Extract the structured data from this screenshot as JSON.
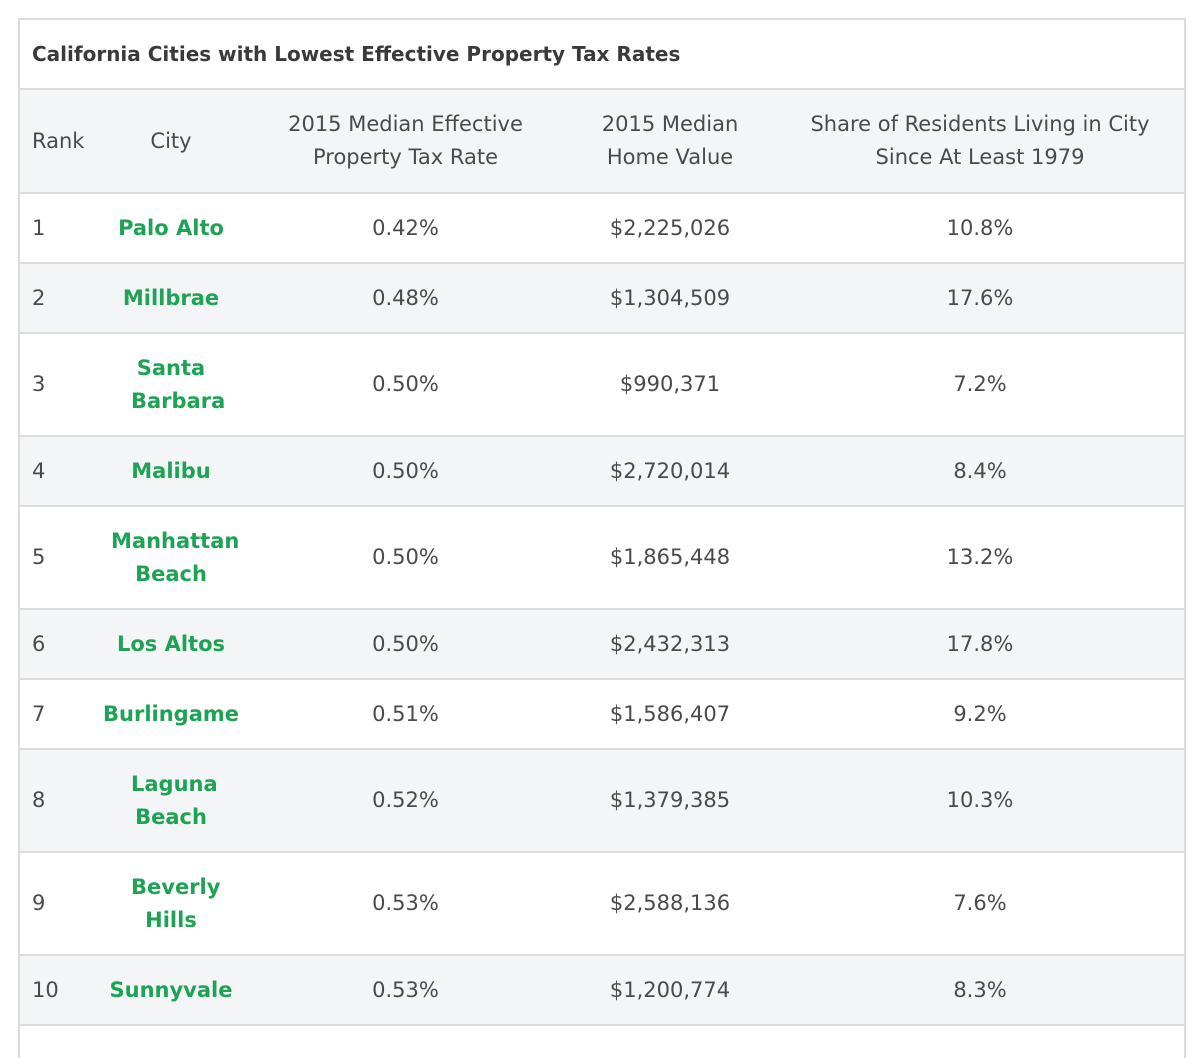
{
  "title": "California Cities with Lowest Effective Property Tax Rates",
  "headers": {
    "rank": "Rank",
    "city": "City",
    "rate": "2015 Median Effective Property Tax Rate",
    "home": "2015 Median Home Value",
    "share": "Share of Residents Living in City Since At Least 1979"
  },
  "rows": [
    {
      "rank": "1",
      "city": "Palo Alto",
      "rate": "0.42%",
      "home": "$2,225,026",
      "share": "10.8%"
    },
    {
      "rank": "2",
      "city": "Millbrae",
      "rate": "0.48%",
      "home": "$1,304,509",
      "share": "17.6%"
    },
    {
      "rank": "3",
      "city": "Santa Barbara",
      "rate": "0.50%",
      "home": "$990,371",
      "share": "7.2%"
    },
    {
      "rank": "4",
      "city": "Malibu",
      "rate": "0.50%",
      "home": "$2,720,014",
      "share": "8.4%"
    },
    {
      "rank": "5",
      "city": "Manhattan Beach",
      "rate": "0.50%",
      "home": "$1,865,448",
      "share": "13.2%"
    },
    {
      "rank": "6",
      "city": "Los Altos",
      "rate": "0.50%",
      "home": "$2,432,313",
      "share": "17.8%"
    },
    {
      "rank": "7",
      "city": "Burlingame",
      "rate": "0.51%",
      "home": "$1,586,407",
      "share": "9.2%"
    },
    {
      "rank": "8",
      "city": "Laguna Beach",
      "rate": "0.52%",
      "home": "$1,379,385",
      "share": "10.3%"
    },
    {
      "rank": "9",
      "city": "Beverly Hills",
      "rate": "0.53%",
      "home": "$2,588,136",
      "share": "7.6%"
    },
    {
      "rank": "10",
      "city": "Sunnyvale",
      "rate": "0.53%",
      "home": "$1,200,774",
      "share": "8.3%"
    }
  ],
  "colors": {
    "city_link": "#1ea355",
    "stripe": "#f4f5f7",
    "border": "#dcdcdc",
    "text": "#4a4a4a"
  }
}
